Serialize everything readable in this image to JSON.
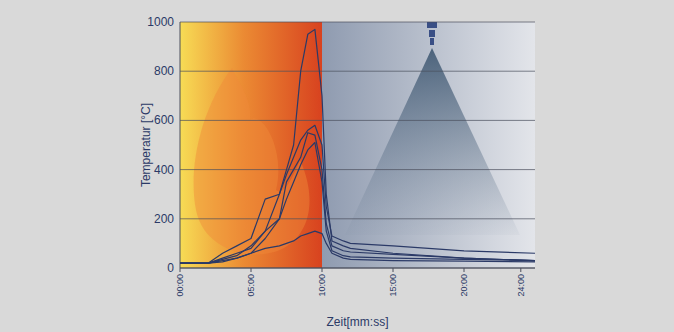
{
  "chart_data": {
    "type": "line",
    "x_label": "Zeit[mm:ss]",
    "y_label": "Temperatur [°C]",
    "x": [
      0,
      2,
      3,
      4,
      5,
      6,
      7,
      7.5,
      8,
      8.5,
      9,
      9.5,
      10,
      10.3,
      10.7,
      11.5,
      12,
      15,
      20,
      25
    ],
    "series": [
      {
        "color": "#2b3a67",
        "values": [
          20,
          20,
          35,
          50,
          90,
          150,
          300,
          400,
          500,
          800,
          950,
          970,
          700,
          300,
          110,
          90,
          80,
          60,
          40,
          30
        ]
      },
      {
        "color": "#2b3a67",
        "values": [
          20,
          20,
          60,
          90,
          120,
          280,
          300,
          380,
          450,
          520,
          560,
          580,
          500,
          250,
          130,
          110,
          100,
          90,
          70,
          60
        ]
      },
      {
        "color": "#2b3a67",
        "values": [
          20,
          20,
          40,
          60,
          80,
          150,
          200,
          350,
          400,
          450,
          550,
          540,
          400,
          180,
          90,
          70,
          65,
          55,
          40,
          30
        ]
      },
      {
        "color": "#2b3a67",
        "values": [
          20,
          20,
          30,
          40,
          60,
          120,
          200,
          280,
          350,
          420,
          480,
          510,
          350,
          150,
          70,
          50,
          45,
          40,
          35,
          30
        ]
      },
      {
        "color": "#2b3a67",
        "values": [
          20,
          20,
          25,
          40,
          60,
          80,
          90,
          100,
          110,
          130,
          140,
          150,
          140,
          100,
          60,
          40,
          35,
          30,
          28,
          25
        ]
      }
    ],
    "xlim": [
      0,
      25
    ],
    "xticks": [
      {
        "value": 0,
        "label": "00:00"
      },
      {
        "value": 5,
        "label": "05:00"
      },
      {
        "value": 10,
        "label": "10:00"
      },
      {
        "value": 15,
        "label": "15:00"
      },
      {
        "value": 20,
        "label": "20:00"
      },
      {
        "value": 24,
        "label": "24:00"
      }
    ],
    "ylim": [
      0,
      1000
    ],
    "yticks": [
      0,
      200,
      400,
      600,
      800,
      1000
    ],
    "grid": true
  }
}
